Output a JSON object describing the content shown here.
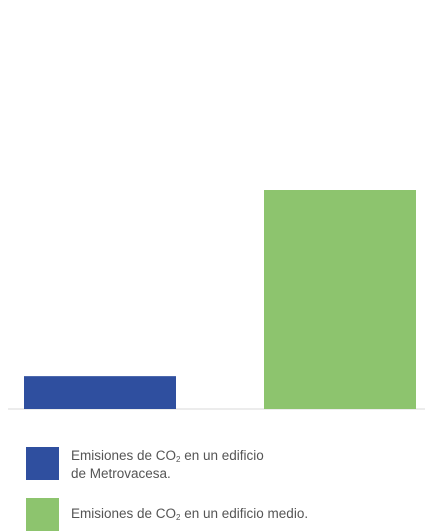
{
  "chart_data": {
    "type": "bar",
    "categories": [
      "Emisiones de CO₂ en un edificio de Metrovacesa.",
      "Emisiones de CO₂ en un edificio medio."
    ],
    "values": [
      15,
      100
    ],
    "colors": [
      "#2f4f9f",
      "#8dc46e"
    ],
    "ylim": [
      0,
      103
    ],
    "grid": false,
    "legend_position": "bottom-left",
    "title": "",
    "xlabel": "",
    "ylabel": ""
  },
  "legend": [
    {
      "text_before_sub": "Emisiones de CO",
      "sub": "2",
      "text_after_sub": " en un edificio",
      "line2": "de Metrovacesa.",
      "color": "#2f4f9f"
    },
    {
      "text_before_sub": "Emisiones de CO",
      "sub": "2",
      "text_after_sub": " en un edificio medio.",
      "line2": "",
      "color": "#8dc46e"
    }
  ]
}
